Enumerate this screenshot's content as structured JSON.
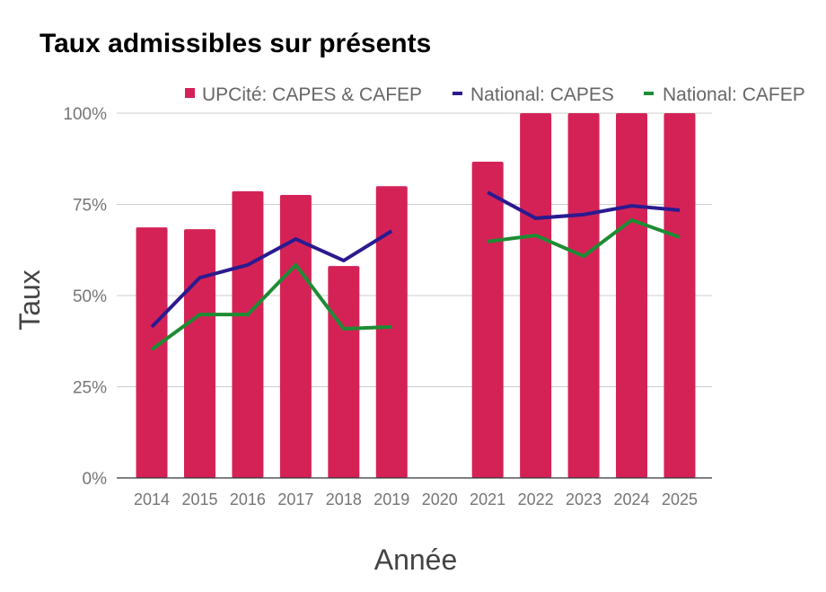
{
  "chart_data": {
    "type": "bar",
    "title": "Taux admissibles sur présents",
    "xlabel": "Année",
    "ylabel": "Taux",
    "ylim": [
      0,
      100
    ],
    "y_ticks": [
      "0%",
      "25%",
      "50%",
      "75%",
      "100%"
    ],
    "y_tick_values": [
      0,
      25,
      50,
      75,
      100
    ],
    "grid": true,
    "legend_position": "top-right",
    "categories": [
      "2014",
      "2015",
      "2016",
      "2017",
      "2018",
      "2019",
      "2020",
      "2021",
      "2022",
      "2023",
      "2024",
      "2025"
    ],
    "series": [
      {
        "name": "UPCité: CAPES & CAFEP",
        "type": "bar",
        "color": "#D42257",
        "values": [
          68.7,
          68.2,
          78.6,
          77.6,
          58.1,
          80.0,
          null,
          86.7,
          100,
          100,
          100,
          100
        ]
      },
      {
        "name": "National: CAPES",
        "type": "line",
        "color": "#2B1A8F",
        "values": [
          41.4,
          54.9,
          58.4,
          65.5,
          59.6,
          67.7,
          null,
          78.3,
          71.2,
          72.2,
          74.6,
          73.4
        ]
      },
      {
        "name": "National: CAFEP",
        "type": "line",
        "color": "#1E8C34",
        "values": [
          35.2,
          44.8,
          44.8,
          58.4,
          40.9,
          41.4,
          null,
          64.8,
          66.5,
          60.8,
          70.7,
          66.0
        ]
      }
    ]
  }
}
